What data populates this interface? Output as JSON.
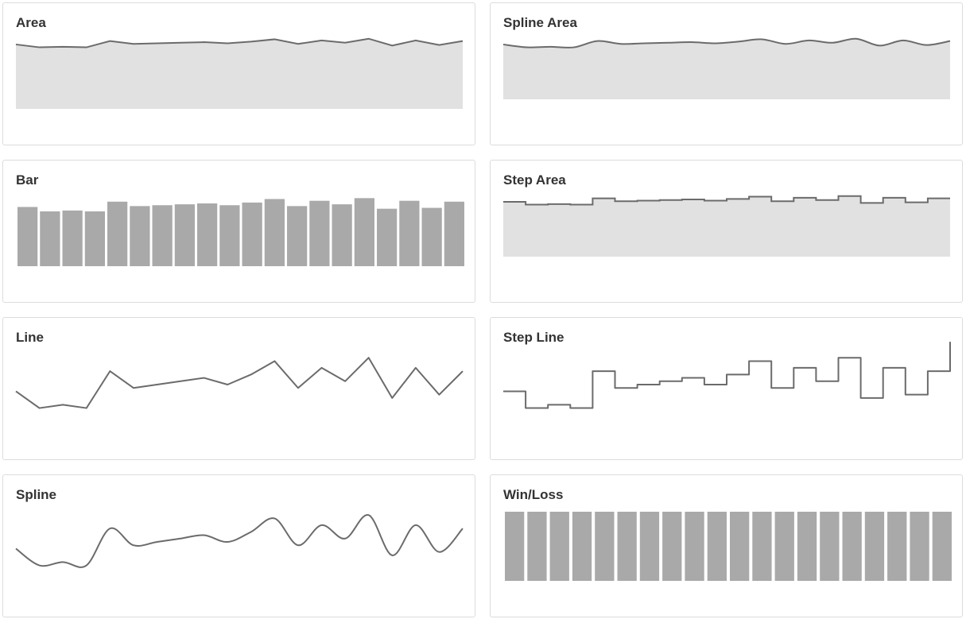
{
  "colors": {
    "line": "#6b6b6b",
    "area_fill": "#e1e1e1",
    "bar_fill": "#a9a9a9",
    "border": "#dcdcdc",
    "title": "#333333"
  },
  "chart_data": [
    {
      "type": "area",
      "subtype": "area",
      "title": "Area",
      "x": [
        1,
        2,
        3,
        4,
        5,
        6,
        7,
        8,
        9,
        10,
        11,
        12,
        13,
        14,
        15,
        16,
        17,
        18,
        19,
        20
      ],
      "values": [
        67,
        62,
        63,
        62,
        73,
        68,
        69,
        70,
        71,
        69,
        72,
        76,
        68,
        74,
        70,
        77,
        65,
        74,
        66,
        73
      ],
      "ylim": [
        0,
        80
      ]
    },
    {
      "type": "area",
      "subtype": "spline-area",
      "title": "Spline Area",
      "x": [
        1,
        2,
        3,
        4,
        5,
        6,
        7,
        8,
        9,
        10,
        11,
        12,
        13,
        14,
        15,
        16,
        17,
        18,
        19,
        20
      ],
      "values": [
        67,
        62,
        63,
        62,
        73,
        68,
        69,
        70,
        71,
        69,
        72,
        76,
        68,
        74,
        70,
        77,
        65,
        74,
        66,
        73
      ],
      "ylim": [
        0,
        80
      ]
    },
    {
      "type": "bar",
      "subtype": "bar",
      "title": "Bar",
      "x": [
        1,
        2,
        3,
        4,
        5,
        6,
        7,
        8,
        9,
        10,
        11,
        12,
        13,
        14,
        15,
        16,
        17,
        18,
        19,
        20
      ],
      "values": [
        67,
        62,
        63,
        62,
        73,
        68,
        69,
        70,
        71,
        69,
        72,
        76,
        68,
        74,
        70,
        77,
        65,
        74,
        66,
        73
      ],
      "ylim": [
        0,
        80
      ]
    },
    {
      "type": "area",
      "subtype": "step-area",
      "title": "Step Area",
      "x": [
        1,
        2,
        3,
        4,
        5,
        6,
        7,
        8,
        9,
        10,
        11,
        12,
        13,
        14,
        15,
        16,
        17,
        18,
        19,
        20
      ],
      "values": [
        67,
        62,
        63,
        62,
        73,
        68,
        69,
        70,
        71,
        69,
        72,
        76,
        68,
        74,
        70,
        77,
        65,
        74,
        66,
        73
      ],
      "ylim": [
        0,
        80
      ]
    },
    {
      "type": "line",
      "subtype": "line",
      "title": "Line",
      "x": [
        1,
        2,
        3,
        4,
        5,
        6,
        7,
        8,
        9,
        10,
        11,
        12,
        13,
        14,
        15,
        16,
        17,
        18,
        19,
        20
      ],
      "values": [
        67,
        62,
        63,
        62,
        73,
        68,
        69,
        70,
        71,
        69,
        72,
        76,
        68,
        74,
        70,
        77,
        65,
        74,
        66,
        73
      ],
      "ylim": [
        60,
        78
      ]
    },
    {
      "type": "line",
      "subtype": "step-line",
      "title": "Step Line",
      "x": [
        1,
        2,
        3,
        4,
        5,
        6,
        7,
        8,
        9,
        10,
        11,
        12,
        13,
        14,
        15,
        16,
        17,
        18,
        19,
        20
      ],
      "values": [
        67,
        62,
        63,
        62,
        73,
        68,
        69,
        70,
        71,
        69,
        72,
        76,
        68,
        74,
        70,
        77,
        65,
        74,
        66,
        73
      ],
      "ylim": [
        60,
        78
      ]
    },
    {
      "type": "line",
      "subtype": "spline",
      "title": "Spline",
      "x": [
        1,
        2,
        3,
        4,
        5,
        6,
        7,
        8,
        9,
        10,
        11,
        12,
        13,
        14,
        15,
        16,
        17,
        18,
        19,
        20
      ],
      "values": [
        67,
        62,
        63,
        62,
        73,
        68,
        69,
        70,
        71,
        69,
        72,
        76,
        68,
        74,
        70,
        77,
        65,
        74,
        66,
        73
      ],
      "ylim": [
        60,
        78
      ]
    },
    {
      "type": "bar",
      "subtype": "win-loss",
      "title": "Win/Loss",
      "x": [
        1,
        2,
        3,
        4,
        5,
        6,
        7,
        8,
        9,
        10,
        11,
        12,
        13,
        14,
        15,
        16,
        17,
        18,
        19,
        20
      ],
      "values": [
        1,
        1,
        1,
        1,
        1,
        1,
        1,
        1,
        1,
        1,
        1,
        1,
        1,
        1,
        1,
        1,
        1,
        1,
        1,
        1
      ],
      "ylim": [
        0,
        1
      ]
    }
  ]
}
